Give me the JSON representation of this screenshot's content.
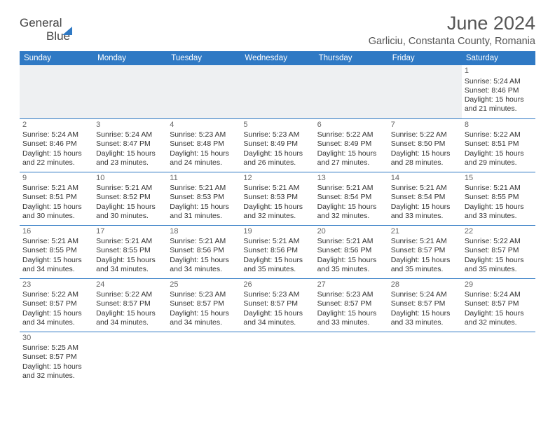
{
  "logo": {
    "text1": "General",
    "text2": "Blue"
  },
  "title": "June 2024",
  "location": "Garliciu, Constanta County, Romania",
  "day_headers": [
    "Sunday",
    "Monday",
    "Tuesday",
    "Wednesday",
    "Thursday",
    "Friday",
    "Saturday"
  ],
  "colors": {
    "header_bg": "#2f79c4",
    "header_fg": "#ffffff",
    "rule": "#2f79c4",
    "title_fg": "#555555",
    "body_fg": "#333333",
    "blank_bg": "#eef0f2"
  },
  "weeks": [
    [
      null,
      null,
      null,
      null,
      null,
      null,
      {
        "n": "1",
        "sr": "Sunrise: 5:24 AM",
        "ss": "Sunset: 8:46 PM",
        "d1": "Daylight: 15 hours",
        "d2": "and 21 minutes."
      }
    ],
    [
      {
        "n": "2",
        "sr": "Sunrise: 5:24 AM",
        "ss": "Sunset: 8:46 PM",
        "d1": "Daylight: 15 hours",
        "d2": "and 22 minutes."
      },
      {
        "n": "3",
        "sr": "Sunrise: 5:24 AM",
        "ss": "Sunset: 8:47 PM",
        "d1": "Daylight: 15 hours",
        "d2": "and 23 minutes."
      },
      {
        "n": "4",
        "sr": "Sunrise: 5:23 AM",
        "ss": "Sunset: 8:48 PM",
        "d1": "Daylight: 15 hours",
        "d2": "and 24 minutes."
      },
      {
        "n": "5",
        "sr": "Sunrise: 5:23 AM",
        "ss": "Sunset: 8:49 PM",
        "d1": "Daylight: 15 hours",
        "d2": "and 26 minutes."
      },
      {
        "n": "6",
        "sr": "Sunrise: 5:22 AM",
        "ss": "Sunset: 8:49 PM",
        "d1": "Daylight: 15 hours",
        "d2": "and 27 minutes."
      },
      {
        "n": "7",
        "sr": "Sunrise: 5:22 AM",
        "ss": "Sunset: 8:50 PM",
        "d1": "Daylight: 15 hours",
        "d2": "and 28 minutes."
      },
      {
        "n": "8",
        "sr": "Sunrise: 5:22 AM",
        "ss": "Sunset: 8:51 PM",
        "d1": "Daylight: 15 hours",
        "d2": "and 29 minutes."
      }
    ],
    [
      {
        "n": "9",
        "sr": "Sunrise: 5:21 AM",
        "ss": "Sunset: 8:51 PM",
        "d1": "Daylight: 15 hours",
        "d2": "and 30 minutes."
      },
      {
        "n": "10",
        "sr": "Sunrise: 5:21 AM",
        "ss": "Sunset: 8:52 PM",
        "d1": "Daylight: 15 hours",
        "d2": "and 30 minutes."
      },
      {
        "n": "11",
        "sr": "Sunrise: 5:21 AM",
        "ss": "Sunset: 8:53 PM",
        "d1": "Daylight: 15 hours",
        "d2": "and 31 minutes."
      },
      {
        "n": "12",
        "sr": "Sunrise: 5:21 AM",
        "ss": "Sunset: 8:53 PM",
        "d1": "Daylight: 15 hours",
        "d2": "and 32 minutes."
      },
      {
        "n": "13",
        "sr": "Sunrise: 5:21 AM",
        "ss": "Sunset: 8:54 PM",
        "d1": "Daylight: 15 hours",
        "d2": "and 32 minutes."
      },
      {
        "n": "14",
        "sr": "Sunrise: 5:21 AM",
        "ss": "Sunset: 8:54 PM",
        "d1": "Daylight: 15 hours",
        "d2": "and 33 minutes."
      },
      {
        "n": "15",
        "sr": "Sunrise: 5:21 AM",
        "ss": "Sunset: 8:55 PM",
        "d1": "Daylight: 15 hours",
        "d2": "and 33 minutes."
      }
    ],
    [
      {
        "n": "16",
        "sr": "Sunrise: 5:21 AM",
        "ss": "Sunset: 8:55 PM",
        "d1": "Daylight: 15 hours",
        "d2": "and 34 minutes."
      },
      {
        "n": "17",
        "sr": "Sunrise: 5:21 AM",
        "ss": "Sunset: 8:55 PM",
        "d1": "Daylight: 15 hours",
        "d2": "and 34 minutes."
      },
      {
        "n": "18",
        "sr": "Sunrise: 5:21 AM",
        "ss": "Sunset: 8:56 PM",
        "d1": "Daylight: 15 hours",
        "d2": "and 34 minutes."
      },
      {
        "n": "19",
        "sr": "Sunrise: 5:21 AM",
        "ss": "Sunset: 8:56 PM",
        "d1": "Daylight: 15 hours",
        "d2": "and 35 minutes."
      },
      {
        "n": "20",
        "sr": "Sunrise: 5:21 AM",
        "ss": "Sunset: 8:56 PM",
        "d1": "Daylight: 15 hours",
        "d2": "and 35 minutes."
      },
      {
        "n": "21",
        "sr": "Sunrise: 5:21 AM",
        "ss": "Sunset: 8:57 PM",
        "d1": "Daylight: 15 hours",
        "d2": "and 35 minutes."
      },
      {
        "n": "22",
        "sr": "Sunrise: 5:22 AM",
        "ss": "Sunset: 8:57 PM",
        "d1": "Daylight: 15 hours",
        "d2": "and 35 minutes."
      }
    ],
    [
      {
        "n": "23",
        "sr": "Sunrise: 5:22 AM",
        "ss": "Sunset: 8:57 PM",
        "d1": "Daylight: 15 hours",
        "d2": "and 34 minutes."
      },
      {
        "n": "24",
        "sr": "Sunrise: 5:22 AM",
        "ss": "Sunset: 8:57 PM",
        "d1": "Daylight: 15 hours",
        "d2": "and 34 minutes."
      },
      {
        "n": "25",
        "sr": "Sunrise: 5:23 AM",
        "ss": "Sunset: 8:57 PM",
        "d1": "Daylight: 15 hours",
        "d2": "and 34 minutes."
      },
      {
        "n": "26",
        "sr": "Sunrise: 5:23 AM",
        "ss": "Sunset: 8:57 PM",
        "d1": "Daylight: 15 hours",
        "d2": "and 34 minutes."
      },
      {
        "n": "27",
        "sr": "Sunrise: 5:23 AM",
        "ss": "Sunset: 8:57 PM",
        "d1": "Daylight: 15 hours",
        "d2": "and 33 minutes."
      },
      {
        "n": "28",
        "sr": "Sunrise: 5:24 AM",
        "ss": "Sunset: 8:57 PM",
        "d1": "Daylight: 15 hours",
        "d2": "and 33 minutes."
      },
      {
        "n": "29",
        "sr": "Sunrise: 5:24 AM",
        "ss": "Sunset: 8:57 PM",
        "d1": "Daylight: 15 hours",
        "d2": "and 32 minutes."
      }
    ],
    [
      {
        "n": "30",
        "sr": "Sunrise: 5:25 AM",
        "ss": "Sunset: 8:57 PM",
        "d1": "Daylight: 15 hours",
        "d2": "and 32 minutes."
      },
      null,
      null,
      null,
      null,
      null,
      null
    ]
  ]
}
